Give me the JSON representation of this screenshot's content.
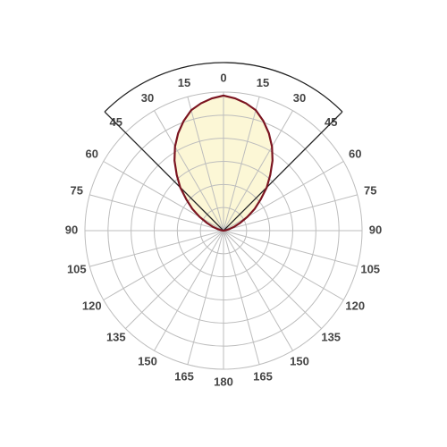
{
  "chart_data": {
    "type": "polar",
    "angle_ticks": [
      0,
      15,
      30,
      45,
      60,
      75,
      90,
      105,
      120,
      135,
      150,
      165,
      180
    ],
    "angles": [
      -90,
      -85,
      -80,
      -75,
      -70,
      -65,
      -60,
      -55,
      -50,
      -45,
      -40,
      -35,
      -30,
      -25,
      -20,
      -15,
      -10,
      -5,
      0,
      5,
      10,
      15,
      20,
      25,
      30,
      35,
      40,
      45,
      50,
      55,
      60,
      65,
      70,
      75,
      80,
      85,
      90
    ],
    "values": [
      0,
      0.5,
      2,
      5,
      10,
      16,
      24,
      33,
      42,
      53,
      63,
      74,
      84,
      93,
      101,
      108,
      112,
      115,
      117,
      115,
      112,
      108,
      101,
      93,
      84,
      74,
      63,
      53,
      42,
      33,
      24,
      16,
      10,
      5,
      2,
      0.5,
      0
    ],
    "rlim": [
      0,
      120
    ],
    "rticks": [
      20,
      40,
      60,
      80,
      100,
      120
    ],
    "color": "#7b1420",
    "fill": "#fcf7d6",
    "grid": true
  }
}
